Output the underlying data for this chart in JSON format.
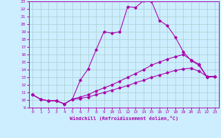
{
  "xlabel": "Windchill (Refroidissement éolien,°C)",
  "xlim": [
    -0.5,
    23.5
  ],
  "ylim": [
    9,
    23
  ],
  "xticks": [
    0,
    1,
    2,
    3,
    4,
    5,
    6,
    7,
    8,
    9,
    10,
    11,
    12,
    13,
    14,
    15,
    16,
    17,
    18,
    19,
    20,
    21,
    22,
    23
  ],
  "yticks": [
    9,
    10,
    11,
    12,
    13,
    14,
    15,
    16,
    17,
    18,
    19,
    20,
    21,
    22,
    23
  ],
  "background_color": "#cceeff",
  "grid_color": "#aaccd0",
  "line_color": "#aa00aa",
  "line1_x": [
    0,
    1,
    2,
    3,
    4,
    5,
    6,
    7,
    8,
    9,
    10,
    11,
    12,
    13,
    14,
    15,
    16,
    17,
    18,
    19,
    20,
    21,
    22,
    23
  ],
  "line1_y": [
    10.7,
    10.1,
    9.9,
    9.9,
    9.5,
    10.1,
    12.6,
    14.1,
    16.6,
    19.0,
    18.8,
    19.0,
    22.3,
    22.2,
    23.1,
    23.0,
    20.5,
    19.8,
    18.3,
    16.4,
    15.2,
    14.6,
    13.0,
    13.1
  ],
  "line2_x": [
    0,
    1,
    2,
    3,
    4,
    5,
    6,
    7,
    8,
    9,
    10,
    11,
    12,
    13,
    14,
    15,
    16,
    17,
    18,
    19,
    20,
    21,
    22,
    23
  ],
  "line2_y": [
    10.7,
    10.1,
    9.9,
    9.9,
    9.5,
    10.1,
    10.4,
    10.7,
    11.2,
    11.6,
    12.0,
    12.5,
    13.0,
    13.5,
    14.0,
    14.6,
    15.0,
    15.4,
    15.7,
    16.0,
    15.3,
    14.7,
    13.1,
    13.1
  ],
  "line3_x": [
    0,
    1,
    2,
    3,
    4,
    5,
    6,
    7,
    8,
    9,
    10,
    11,
    12,
    13,
    14,
    15,
    16,
    17,
    18,
    19,
    20,
    21,
    22,
    23
  ],
  "line3_y": [
    10.7,
    10.1,
    9.9,
    9.9,
    9.5,
    10.1,
    10.2,
    10.4,
    10.7,
    11.0,
    11.3,
    11.6,
    11.9,
    12.3,
    12.6,
    13.0,
    13.3,
    13.6,
    13.9,
    14.1,
    14.2,
    13.8,
    13.1,
    13.1
  ]
}
